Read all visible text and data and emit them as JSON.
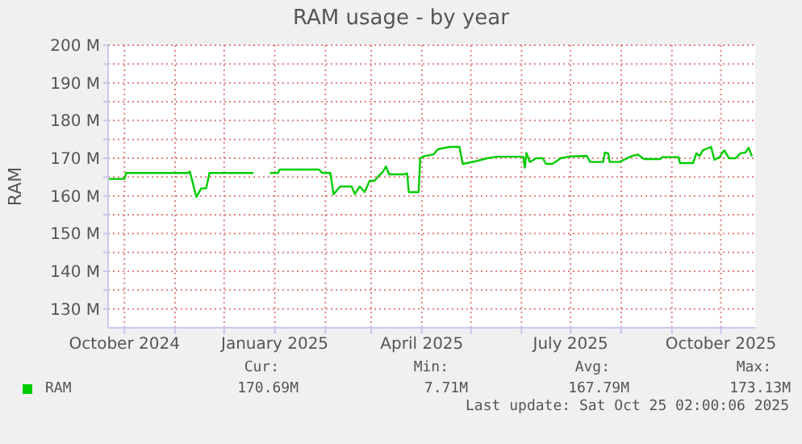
{
  "chart_data": {
    "type": "line",
    "title": "RAM usage - by year",
    "ylabel": "RAM",
    "x": [
      "2024-09-21",
      "2024-10-01",
      "2024-10-02",
      "2024-11-09",
      "2024-11-10",
      "2024-11-14",
      "2024-11-17",
      "2024-11-20",
      "2024-11-22",
      "2024-12-19",
      "2024-12-25",
      "2024-12-29",
      "2025-01-03",
      "2025-01-04",
      "2025-01-28",
      "2025-01-30",
      "2025-02-04",
      "2025-02-06",
      "2025-02-10",
      "2025-02-17",
      "2025-02-19",
      "2025-02-22",
      "2025-02-25",
      "2025-02-28",
      "2025-03-03",
      "2025-03-06",
      "2025-03-08",
      "2025-03-10",
      "2025-03-12",
      "2025-03-21",
      "2025-03-23",
      "2025-03-24",
      "2025-03-30",
      "2025-03-31",
      "2025-04-02",
      "2025-04-08",
      "2025-04-11",
      "2025-04-18",
      "2025-04-24",
      "2025-04-26",
      "2025-05-04",
      "2025-05-11",
      "2025-05-17",
      "2025-06-02",
      "2025-06-03",
      "2025-06-04",
      "2025-06-06",
      "2025-06-10",
      "2025-06-14",
      "2025-06-16",
      "2025-06-20",
      "2025-06-25",
      "2025-07-01",
      "2025-07-11",
      "2025-07-13",
      "2025-07-21",
      "2025-07-22",
      "2025-07-24",
      "2025-07-25",
      "2025-07-31",
      "2025-08-07",
      "2025-08-11",
      "2025-08-15",
      "2025-08-25",
      "2025-08-26",
      "2025-09-05",
      "2025-09-06",
      "2025-09-14",
      "2025-09-16",
      "2025-09-18",
      "2025-09-20",
      "2025-09-25",
      "2025-09-27",
      "2025-09-30",
      "2025-10-03",
      "2025-10-06",
      "2025-10-10",
      "2025-10-13",
      "2025-10-16",
      "2025-10-18",
      "2025-10-20"
    ],
    "series": [
      {
        "name": "RAM",
        "color": "#00cc00",
        "values": [
          164.5,
          164.5,
          166.1,
          166.1,
          166.5,
          159.7,
          162,
          162,
          166.1,
          166.1,
          null,
          166.1,
          166.1,
          167,
          167,
          166.1,
          166.1,
          160.4,
          162.5,
          162.5,
          160.5,
          162.5,
          161,
          164,
          164,
          165.5,
          166.3,
          167.8,
          165.7,
          165.7,
          166,
          161,
          161,
          170,
          170.5,
          171,
          172.4,
          173,
          173,
          168.5,
          169.2,
          170,
          170.4,
          170.4,
          167.5,
          171.4,
          169,
          170,
          170,
          168.5,
          168.5,
          170,
          170.5,
          170.6,
          169,
          169,
          171.5,
          171.3,
          169,
          169,
          170.5,
          171,
          169.8,
          169.8,
          170.3,
          170.3,
          168.7,
          168.7,
          171.3,
          170.6,
          172.1,
          173,
          169.6,
          170.2,
          172.1,
          170,
          170,
          171.3,
          171.5,
          172.8,
          170.5
        ]
      }
    ],
    "xlim": [
      "2024-09-21",
      "2025-10-22"
    ],
    "xticks": [
      {
        "value": "2024-10-01",
        "label": "October 2024"
      },
      {
        "value": "2024-11-01",
        "label": null
      },
      {
        "value": "2024-12-01",
        "label": null
      },
      {
        "value": "2025-01-01",
        "label": "January 2025"
      },
      {
        "value": "2025-02-01",
        "label": null
      },
      {
        "value": "2025-03-01",
        "label": null
      },
      {
        "value": "2025-04-01",
        "label": "April 2025"
      },
      {
        "value": "2025-05-01",
        "label": null
      },
      {
        "value": "2025-06-01",
        "label": null
      },
      {
        "value": "2025-07-01",
        "label": "July 2025"
      },
      {
        "value": "2025-08-01",
        "label": null
      },
      {
        "value": "2025-09-01",
        "label": null
      },
      {
        "value": "2025-10-01",
        "label": "October 2025"
      }
    ],
    "ylim": [
      125,
      200
    ],
    "yticks": [
      {
        "value": 130,
        "label": "130 M"
      },
      {
        "value": 135,
        "label": null
      },
      {
        "value": 140,
        "label": "140 M"
      },
      {
        "value": 145,
        "label": null
      },
      {
        "value": 150,
        "label": "150 M"
      },
      {
        "value": 155,
        "label": null
      },
      {
        "value": 160,
        "label": "160 M"
      },
      {
        "value": 165,
        "label": null
      },
      {
        "value": 170,
        "label": "170 M"
      },
      {
        "value": 175,
        "label": null
      },
      {
        "value": 180,
        "label": "180 M"
      },
      {
        "value": 185,
        "label": null
      },
      {
        "value": 190,
        "label": "190 M"
      },
      {
        "value": 195,
        "label": null
      },
      {
        "value": 200,
        "label": "200 M"
      }
    ],
    "grid": true,
    "legend": "bottom left",
    "marker": "none",
    "line_style": "solid",
    "annotations": [
      "Cur:",
      "170.69M",
      "Min:",
      "7.71M",
      "Avg:",
      "167.79M",
      "Max:",
      "173.13M",
      "Last update: Sat Oct 25 02:00:06 2025"
    ]
  }
}
